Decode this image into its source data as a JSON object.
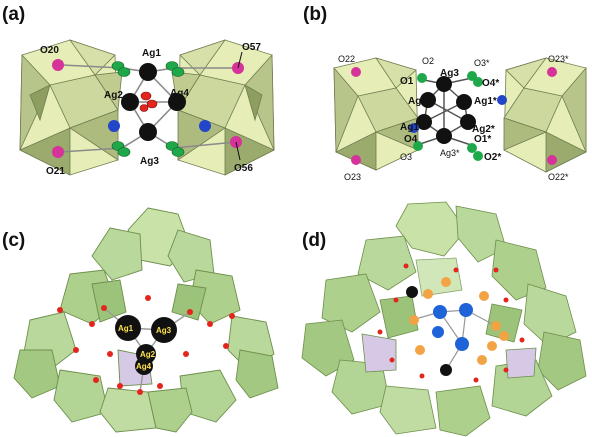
{
  "panels": {
    "a": {
      "label": "(a)",
      "atoms": {
        "ag1": "Ag1",
        "ag2": "Ag2",
        "ag3": "Ag3",
        "ag4": "Ag4",
        "o20": "O20",
        "o21": "O21",
        "o56": "O56",
        "o57": "O57"
      }
    },
    "b": {
      "label": "(b)",
      "atoms": {
        "o22": "O22",
        "o23": "O23",
        "o23s": "O23*",
        "o22s": "O22*",
        "o1": "O1",
        "o2": "O2",
        "o3": "O3",
        "o4": "O4",
        "o1s": "O1*",
        "o2s": "O2*",
        "o3s": "O3*",
        "o4s": "O4*",
        "ag1": "Ag1",
        "ag2": "Ag2",
        "ag3": "Ag3",
        "ag1s": "Ag1*",
        "ag2s": "Ag2*",
        "ag3s": "Ag3*"
      }
    },
    "c": {
      "label": "(c)",
      "atoms": {
        "ag1": "Ag1",
        "ag2": "Ag2",
        "ag3": "Ag3",
        "ag4": "Ag4"
      }
    },
    "d": {
      "label": "(d)"
    }
  },
  "colors": {
    "polyhedron_fill": "#e6edb7",
    "polyhedron_dark": "#9aab6d",
    "cluster_fill": "#b9d89b",
    "cluster_edge": "#6d8f4b",
    "silver": "#111111",
    "oxygen_green": "#1fa84a",
    "oxygen_magenta": "#d6339a",
    "oxygen_red": "#e3261d",
    "nitrogen_blue": "#2345c8",
    "cobalt_blue": "#1f63d8",
    "orange": "#f2a444"
  }
}
